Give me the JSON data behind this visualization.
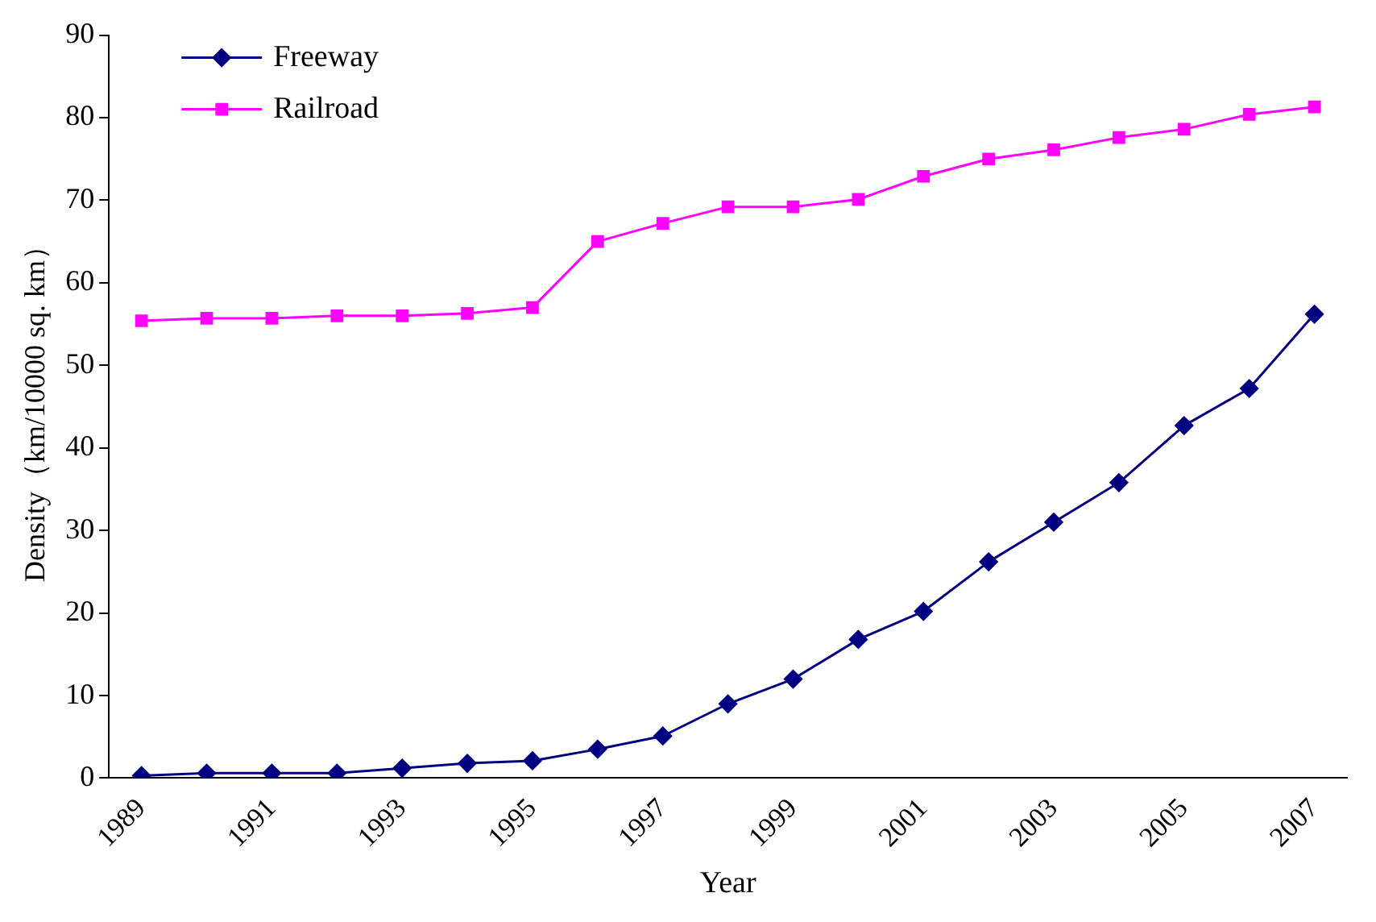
{
  "chart_data": {
    "type": "line",
    "xlabel": "Year",
    "ylabel": "Density（km/10000 sq. km）",
    "categories": [
      "1989",
      null,
      "1991",
      null,
      "1993",
      null,
      "1995",
      null,
      "1997",
      null,
      "1999",
      null,
      "2001",
      null,
      "2003",
      null,
      "2005",
      null,
      "2007"
    ],
    "ylim": [
      0,
      90
    ],
    "yticks": [
      0,
      10,
      20,
      30,
      40,
      50,
      60,
      70,
      80,
      90
    ],
    "grid": false,
    "legend": "top left",
    "series": [
      {
        "name": "Freeway",
        "color": "#000080",
        "marker": "diamond",
        "values": [
          0.3,
          0.6,
          0.6,
          0.6,
          1.2,
          1.8,
          2.1,
          3.5,
          5.1,
          9.0,
          12.0,
          16.8,
          20.2,
          26.2,
          31.0,
          35.8,
          42.7,
          47.2,
          56.2
        ]
      },
      {
        "name": "Railroad",
        "color": "#ff00ff",
        "marker": "square",
        "values": [
          55.4,
          55.7,
          55.7,
          56.0,
          56.0,
          56.3,
          57.0,
          65.0,
          67.2,
          69.2,
          69.2,
          70.1,
          72.9,
          75.0,
          76.1,
          77.6,
          78.6,
          80.4,
          81.3
        ]
      }
    ]
  }
}
